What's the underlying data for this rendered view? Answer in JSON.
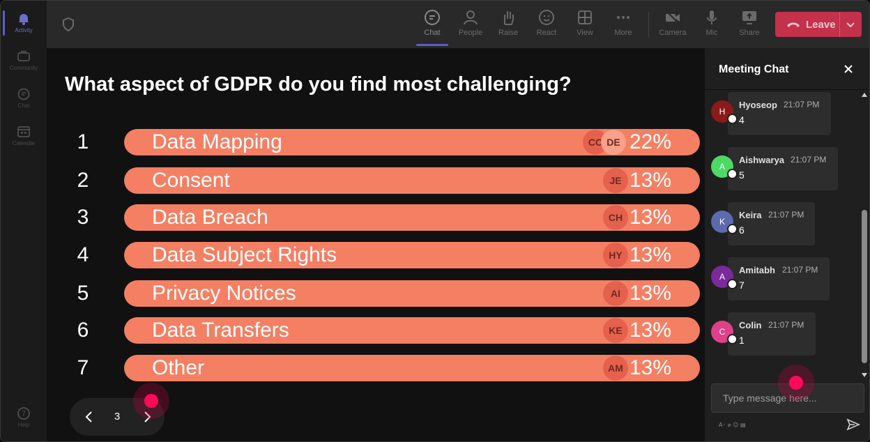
{
  "rail": [
    {
      "label": "Activity",
      "icon": "bell-icon",
      "active": true
    },
    {
      "label": "Community",
      "icon": "community-icon"
    },
    {
      "label": "Chat",
      "icon": "chat-icon"
    },
    {
      "label": "Calendar",
      "icon": "calendar-icon"
    },
    {
      "label": "Help",
      "icon": "help-icon"
    }
  ],
  "toolbar": {
    "chat": "Chat",
    "people": "People",
    "raise": "Raise",
    "react": "React",
    "view": "View",
    "more": "More",
    "camera": "Camera",
    "mic": "Mic",
    "share": "Share",
    "leave": "Leave"
  },
  "poll": {
    "question": "What aspect of GDPR do you find most challenging?",
    "rows": [
      {
        "num": "1",
        "label": "Data Mapping",
        "pct": "22%",
        "avatars": [
          "CC",
          "DE"
        ]
      },
      {
        "num": "2",
        "label": "Consent",
        "pct": "13%",
        "avatars": [
          "JE"
        ]
      },
      {
        "num": "3",
        "label": "Data Breach",
        "pct": "13%",
        "avatars": [
          "CH"
        ]
      },
      {
        "num": "4",
        "label": "Data Subject Rights",
        "pct": "13%",
        "avatars": [
          "HY"
        ]
      },
      {
        "num": "5",
        "label": "Privacy Notices",
        "pct": "13%",
        "avatars": [
          "AI"
        ]
      },
      {
        "num": "6",
        "label": "Data Transfers",
        "pct": "13%",
        "avatars": [
          "KE"
        ]
      },
      {
        "num": "7",
        "label": "Other",
        "pct": "13%",
        "avatars": [
          "AM"
        ]
      }
    ],
    "page": "3"
  },
  "chat": {
    "title": "Meeting Chat",
    "messages": [
      {
        "initial": "H",
        "name": "Hyoseop",
        "time": "21:07 PM",
        "text": "4",
        "color": "#8b1a1a"
      },
      {
        "initial": "A",
        "name": "Aishwarya",
        "time": "21:07 PM",
        "text": "5",
        "color": "#4cd964"
      },
      {
        "initial": "K",
        "name": "Keira",
        "time": "21:07 PM",
        "text": "6",
        "color": "#5b6bb0"
      },
      {
        "initial": "A",
        "name": "Amitabh",
        "time": "21:07 PM",
        "text": "7",
        "color": "#7a2a9a"
      },
      {
        "initial": "C",
        "name": "Colin",
        "time": "21:07 PM",
        "text": "1",
        "color": "#e0408a"
      }
    ],
    "placeholder": "Type message here..."
  },
  "colors": {
    "bar": "#f47f63",
    "leave": "#c4314b",
    "accent": "#5b5fc7"
  }
}
